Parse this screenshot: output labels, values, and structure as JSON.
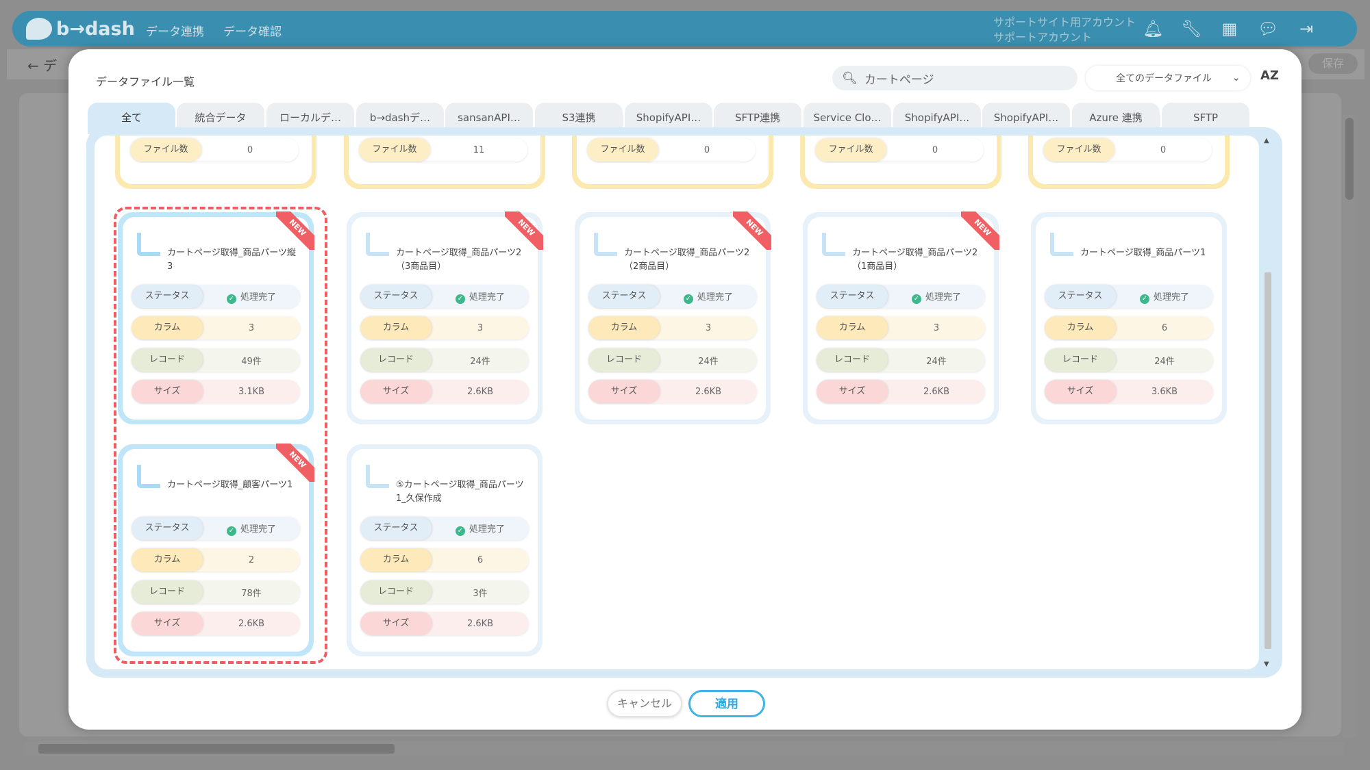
{
  "app": {
    "logo": "b→dash",
    "nav": [
      "データ連携",
      "データ確認"
    ],
    "account_line1": "サポートサイト用アカウント",
    "account_line2": "サポートアカウント",
    "save_label": "保存",
    "back_label": "← デ",
    "icons": [
      "bell-icon",
      "wrench-icon",
      "grid-icon",
      "chat-icon",
      "logout-icon"
    ]
  },
  "modal": {
    "title": "データファイル一覧",
    "search_value": "カートページ",
    "filter_value": "全てのデータファイル",
    "sort_label": "AZ",
    "tabs": [
      "全て",
      "統合データ",
      "ローカルデ…",
      "b→dashデ…",
      "sansanAPI…",
      "S3連携",
      "ShopifyAPI…",
      "SFTP連携",
      "Service Clo…",
      "ShopifyAPI…",
      "ShopifyAPI…",
      "Azure 連携",
      "SFTP"
    ],
    "active_tab": "全て",
    "cancel_label": "キャンセル",
    "apply_label": "適用"
  },
  "labels": {
    "file_count": "ファイル数",
    "status": "ステータス",
    "column": "カラム",
    "record": "レコード",
    "size": "サイズ",
    "new_badge": "NEW"
  },
  "folder_cards": [
    {
      "file_count": "0"
    },
    {
      "file_count": "11"
    },
    {
      "file_count": "0"
    },
    {
      "file_count": "0"
    },
    {
      "file_count": "0"
    }
  ],
  "file_cards": [
    {
      "name": "カートページ取得_商品パーツ縦3",
      "status": "処理完了",
      "column": "3",
      "record": "49件",
      "size": "3.1KB",
      "new": true,
      "selected": true
    },
    {
      "name": "カートページ取得_商品パーツ2（3商品目）",
      "status": "処理完了",
      "column": "3",
      "record": "24件",
      "size": "2.6KB",
      "new": true,
      "selected": false
    },
    {
      "name": "カートページ取得_商品パーツ2（2商品目）",
      "status": "処理完了",
      "column": "3",
      "record": "24件",
      "size": "2.6KB",
      "new": true,
      "selected": false
    },
    {
      "name": "カートページ取得_商品パーツ2（1商品目）",
      "status": "処理完了",
      "column": "3",
      "record": "24件",
      "size": "2.6KB",
      "new": true,
      "selected": false
    },
    {
      "name": "カートページ取得_商品パーツ1",
      "status": "処理完了",
      "column": "6",
      "record": "24件",
      "size": "3.6KB",
      "new": false,
      "selected": false
    },
    {
      "name": "カートページ取得_顧客パーツ1",
      "status": "処理完了",
      "column": "2",
      "record": "78件",
      "size": "2.6KB",
      "new": true,
      "selected": true
    },
    {
      "name": "⑤カートページ取得_商品パーツ1_久保作成",
      "status": "処理完了",
      "column": "6",
      "record": "3件",
      "size": "2.6KB",
      "new": false,
      "selected": false
    }
  ]
}
